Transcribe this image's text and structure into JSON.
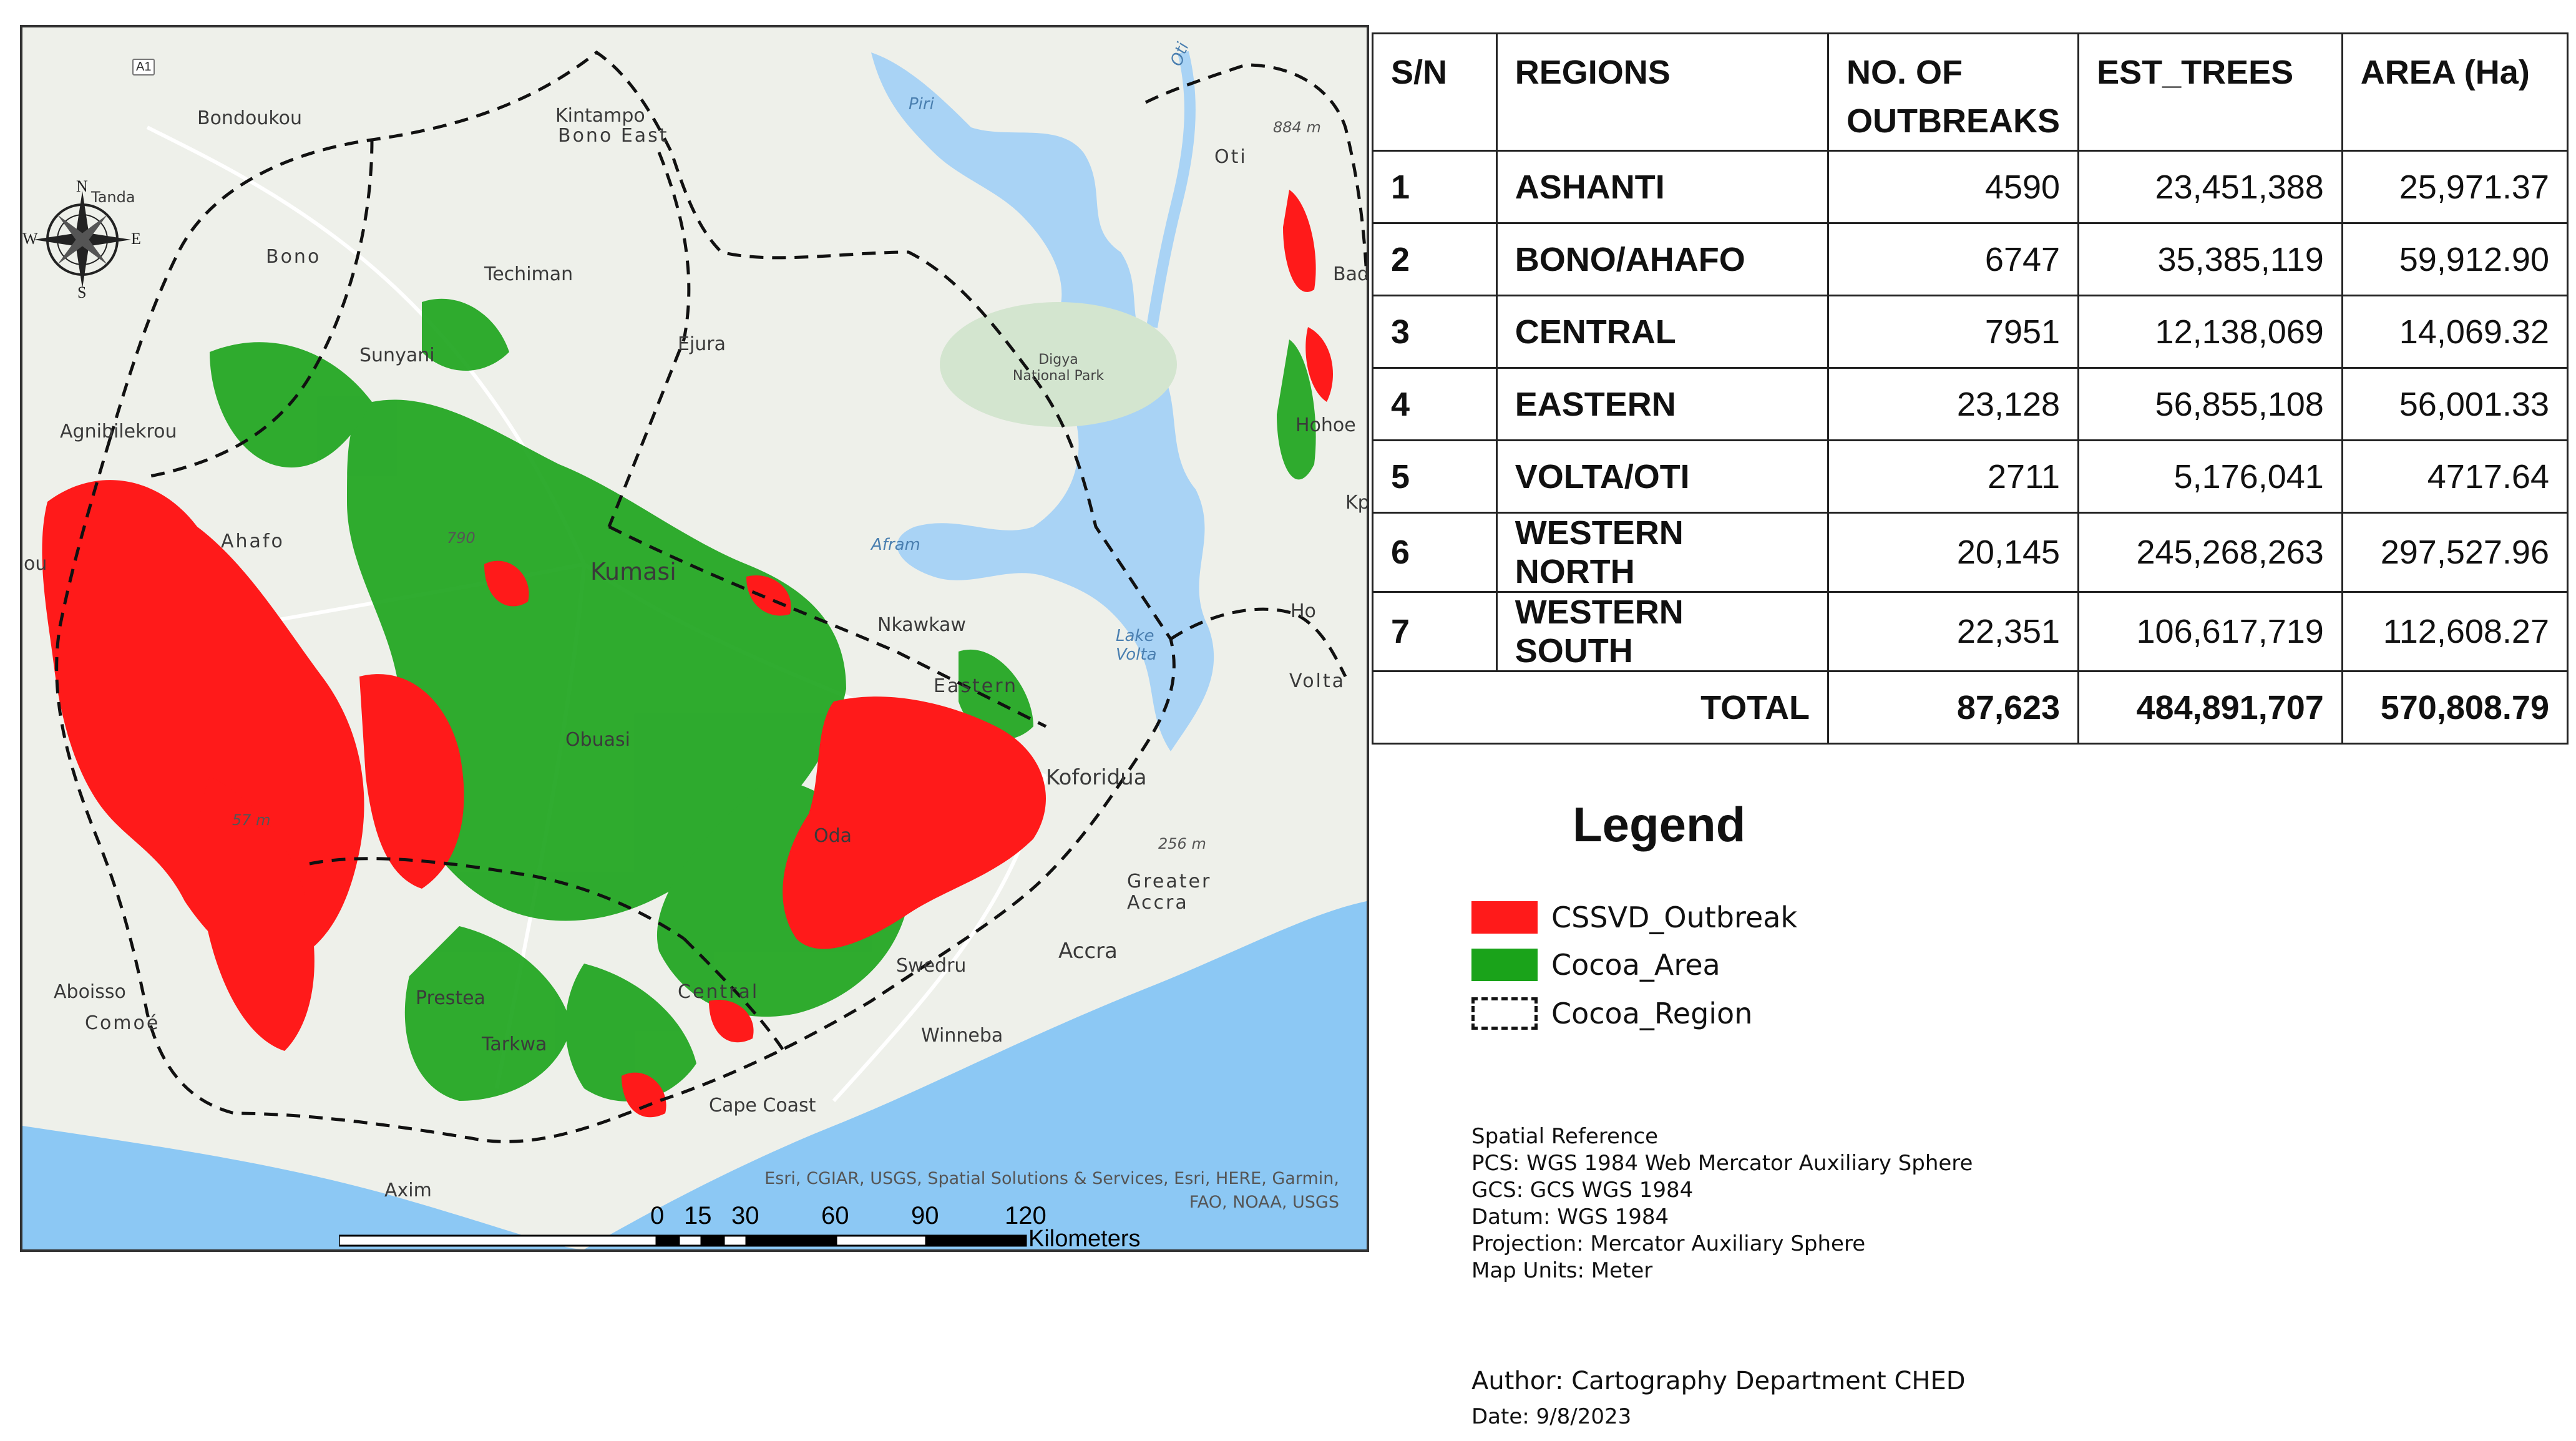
{
  "map": {
    "places": {
      "bondoukou": "Bondoukou",
      "kintampo": "Kintampo",
      "bono_east": "Bono East",
      "bono": "Bono",
      "techiman": "Techiman",
      "sunyani": "Sunyani",
      "ejura": "Ejura",
      "agnibilekrou": "Agnibilekrou",
      "ahafo": "Ahafo",
      "kumasi": "Kumasi",
      "nkawkaw": "Nkawkaw",
      "eastern": "Eastern",
      "obuasi": "Obuasi",
      "koforidua": "Koforidua",
      "oda": "Oda",
      "greater_accra": "Greater Accra",
      "accra": "Accra",
      "swedru": "Swedru",
      "central": "Central",
      "winneba": "Winneba",
      "cape_coast": "Cape Coast",
      "prestea": "Prestea",
      "tarkwa": "Tarkwa",
      "aboisso": "Aboisso",
      "comoe": "Comoé",
      "axim": "Axim",
      "oti": "Oti",
      "hohoe": "Hohoe",
      "ho": "Ho",
      "volta": "Volta",
      "tanda": "Tanda",
      "bad": "Bad",
      "kp": "Kp",
      "ou": "ou"
    },
    "water_labels": {
      "pru": "Piri",
      "afram": "Afram",
      "lake_volta": "Lake Volta",
      "oti_river": "Oti"
    },
    "park": "Digya National Park",
    "elevations": {
      "e1": "884 m",
      "e2": "256 m",
      "e3": "57 m",
      "e4": "790"
    },
    "road_shield": "A1",
    "attribution": "Esri, CGIAR, USGS, Spatial Solutions & Services, Esri, HERE, Garmin, FAO, NOAA, USGS",
    "compass": {
      "n": "N",
      "s": "S",
      "e": "E",
      "w": "W"
    },
    "scalebar": {
      "ticks": [
        "0",
        "15",
        "30",
        "60",
        "90",
        "120"
      ],
      "unit": "Kilometers"
    },
    "colors": {
      "outbreak": "#ff1a1a",
      "cocoa": "#1aa31a",
      "land": "#eef0ea",
      "water": "#a9d3f5",
      "sea": "#8cc8f4"
    }
  },
  "table": {
    "headers": [
      "S/N",
      "REGIONS",
      "NO. OF OUTBREAKS",
      "EST_TREES",
      "AREA (Ha)"
    ],
    "rows": [
      {
        "sn": "1",
        "region": "ASHANTI",
        "outbreaks": "4590",
        "trees": "23,451,388",
        "area": "25,971.37"
      },
      {
        "sn": "2",
        "region": "BONO/AHAFO",
        "outbreaks": "6747",
        "trees": "35,385,119",
        "area": "59,912.90"
      },
      {
        "sn": "3",
        "region": "CENTRAL",
        "outbreaks": "7951",
        "trees": "12,138,069",
        "area": "14,069.32"
      },
      {
        "sn": "4",
        "region": "EASTERN",
        "outbreaks": "23,128",
        "trees": "56,855,108",
        "area": "56,001.33"
      },
      {
        "sn": "5",
        "region": "VOLTA/OTI",
        "outbreaks": "2711",
        "trees": "5,176,041",
        "area": "4717.64"
      },
      {
        "sn": "6",
        "region": "WESTERN NORTH",
        "outbreaks": "20,145",
        "trees": "245,268,263",
        "area": "297,527.96"
      },
      {
        "sn": "7",
        "region": "WESTERN SOUTH",
        "outbreaks": "22,351",
        "trees": "106,617,719",
        "area": "112,608.27"
      }
    ],
    "total": {
      "label": "TOTAL",
      "outbreaks": "87,623",
      "trees": "484,891,707",
      "area": "570,808.79"
    }
  },
  "legend": {
    "title": "Legend",
    "items": [
      {
        "label": "CSSVD_Outbreak",
        "color": "#ff1a1a"
      },
      {
        "label": "Cocoa_Area",
        "color": "#1aa31a"
      },
      {
        "label": "Cocoa_Region",
        "color": "dashed"
      }
    ]
  },
  "spatial_reference": {
    "title": "Spatial Reference",
    "pcs": "PCS: WGS 1984 Web Mercator Auxiliary Sphere",
    "gcs": "GCS: GCS WGS 1984",
    "datum": "Datum: WGS 1984",
    "projection": "Projection: Mercator Auxiliary Sphere",
    "units": "Map Units: Meter"
  },
  "author": "Author: Cartography Department CHED",
  "date": "Date: 9/8/2023"
}
